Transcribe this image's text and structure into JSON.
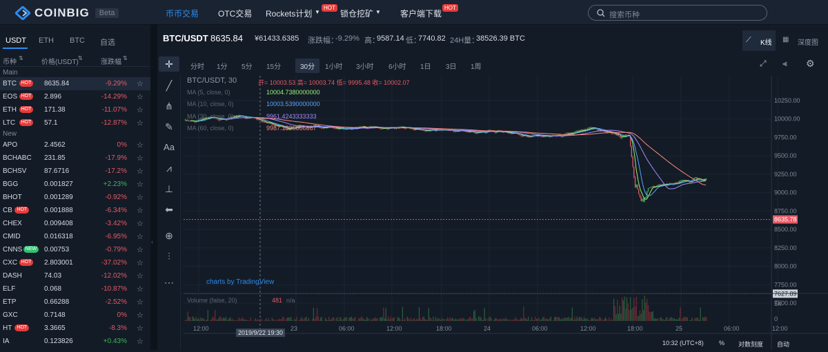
{
  "nav": {
    "brand": "COINBIG",
    "beta": "Beta",
    "items": [
      "币币交易",
      "OTC交易",
      "Rockets计划",
      "锁仓挖矿",
      "客户端下载"
    ],
    "hot": "HOT",
    "search_placeholder": "搜索币种"
  },
  "market": {
    "tabs": [
      "USDT",
      "ETH",
      "BTC",
      "自选"
    ],
    "cols": [
      "币种",
      "价格(USDT)",
      "涨跌幅"
    ],
    "main_label": "Main",
    "new_label": "New",
    "main": [
      {
        "s": "BTC",
        "hb": "HOT",
        "p": "8635.84",
        "c": "-9.29%"
      },
      {
        "s": "EOS",
        "hb": "HOT",
        "p": "2.896",
        "c": "-14.29%"
      },
      {
        "s": "ETH",
        "hb": "HOT",
        "p": "171.38",
        "c": "-11.07%"
      },
      {
        "s": "LTC",
        "hb": "HOT",
        "p": "57.1",
        "c": "-12.87%"
      }
    ],
    "new": [
      {
        "s": "APO",
        "p": "2.4562",
        "c": "0%"
      },
      {
        "s": "BCHABC",
        "p": "231.85",
        "c": "-17.9%"
      },
      {
        "s": "BCHSV",
        "p": "87.6716",
        "c": "-17.2%"
      },
      {
        "s": "BGG",
        "p": "0.001827",
        "c": "+2.23%"
      },
      {
        "s": "BHOT",
        "p": "0.001289",
        "c": "-0.92%"
      },
      {
        "s": "CB",
        "hb": "HOT",
        "p": "0.001888",
        "c": "-6.34%"
      },
      {
        "s": "CHEX",
        "p": "0.009408",
        "c": "-3.42%"
      },
      {
        "s": "CMID",
        "p": "0.016318",
        "c": "-6.95%"
      },
      {
        "s": "CNNS",
        "hb": "NEW",
        "p": "0.00753",
        "c": "-0.79%"
      },
      {
        "s": "CXC",
        "hb": "HOT",
        "p": "2.803001",
        "c": "-37.02%"
      },
      {
        "s": "DASH",
        "p": "74.03",
        "c": "-12.02%"
      },
      {
        "s": "ELF",
        "p": "0.068",
        "c": "-10.87%"
      },
      {
        "s": "ETP",
        "p": "0.66288",
        "c": "-2.52%"
      },
      {
        "s": "GXC",
        "p": "0.7148",
        "c": "0%"
      },
      {
        "s": "HT",
        "hb": "HOT",
        "p": "3.3665",
        "c": "-8.3%"
      },
      {
        "s": "IA",
        "p": "0.123826",
        "c": "+0.43%"
      }
    ]
  },
  "ticker": {
    "pair": "BTC/USDT",
    "price": "8635.84",
    "cny": "¥61433.6385",
    "chg_label": "涨跌幅：",
    "chg": "-9.29%",
    "high_label": "高：",
    "high": "9587.14",
    "low_label": "低：",
    "low": "7740.82",
    "vol_label": "24H量：",
    "vol": "38526.39 BTC",
    "kline": "K线",
    "depth": "深度图"
  },
  "timeframes": [
    "分时",
    "1分",
    "5分",
    "15分",
    "30分",
    "1小时",
    "3小时",
    "6小时",
    "1日",
    "3日",
    "1周"
  ],
  "chart": {
    "symbol": "BTC/USDT, 30",
    "ohlc": "开= 10003.53  高= 10003.74  低= 9995.48  收= 10002.07",
    "ma5": "MA (5, close, 0)",
    "ma5v": "10004.7380000000",
    "ma10": "MA (10, close, 0)",
    "ma10v": "10003.5390000000",
    "ma30": "MA (30, close, 0)",
    "ma30v": "9961.4243333333",
    "ma60": "MA (60, close, 0)",
    "ma60v": "9987.1336666667",
    "volume": "Volume (false, 20)",
    "volval": "481",
    "na": "n/a",
    "tv": "charts by TradingView",
    "last": "8635.78",
    "low_mark": "7627.89",
    "cross_time": "2019/9/22 19:30",
    "yticks": [
      "10250.00",
      "10000.00",
      "9750.00",
      "9500.00",
      "9250.00",
      "9000.00",
      "8750.00",
      "8500.00",
      "8250.00",
      "8000.00",
      "7750.00",
      "7500.00"
    ],
    "vticks": [
      "5K",
      "0"
    ],
    "xticks": [
      "12:00",
      "23",
      "06:00",
      "12:00",
      "18:00",
      "24",
      "06:00",
      "12:00",
      "18:00",
      "25",
      "06:00",
      "12:00"
    ],
    "clock": "10:32 (UTC+8)",
    "pct": "%",
    "log": "对数刻度",
    "auto": "自动"
  },
  "colors": {
    "up": "#41b75f",
    "down": "#e55b66",
    "accent": "#2d8cf0"
  }
}
